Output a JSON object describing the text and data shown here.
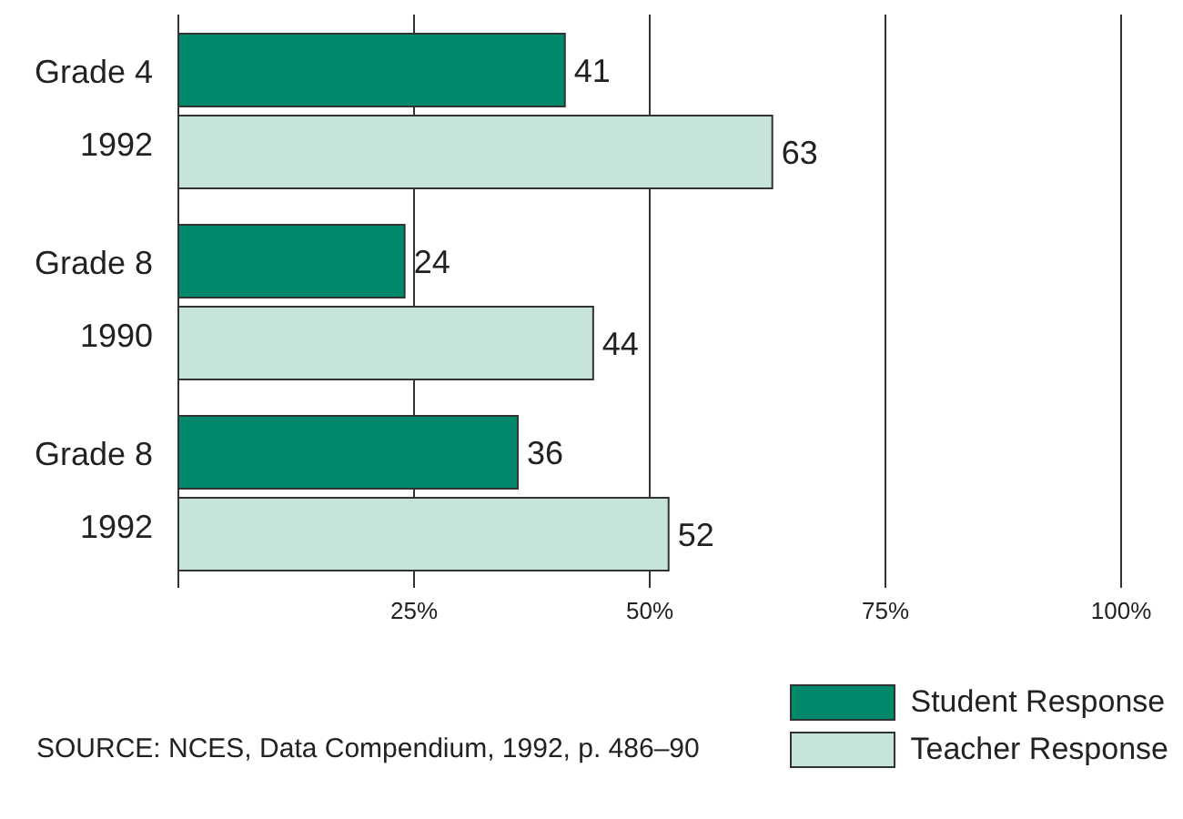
{
  "chart_data": {
    "type": "bar",
    "orientation": "horizontal",
    "categories": [
      "Grade 4 1992",
      "Grade 8 1990",
      "Grade 8 1992"
    ],
    "series": [
      {
        "name": "Student Response",
        "color": "#00896a",
        "values": [
          41,
          24,
          36
        ]
      },
      {
        "name": "Teacher Response",
        "color": "#c6e4da",
        "values": [
          63,
          44,
          52
        ]
      }
    ],
    "xlim": [
      0,
      100
    ],
    "xticks": [
      {
        "value": 25,
        "label": "25%"
      },
      {
        "value": 50,
        "label": "50%"
      },
      {
        "value": 75,
        "label": "75%"
      },
      {
        "value": 100,
        "label": "100%"
      }
    ],
    "grid": "x",
    "legend": "bottom right",
    "data_labels": true,
    "annotations": [
      "SOURCE: NCES, Data Compendium, 1992, p. 486–90"
    ]
  }
}
